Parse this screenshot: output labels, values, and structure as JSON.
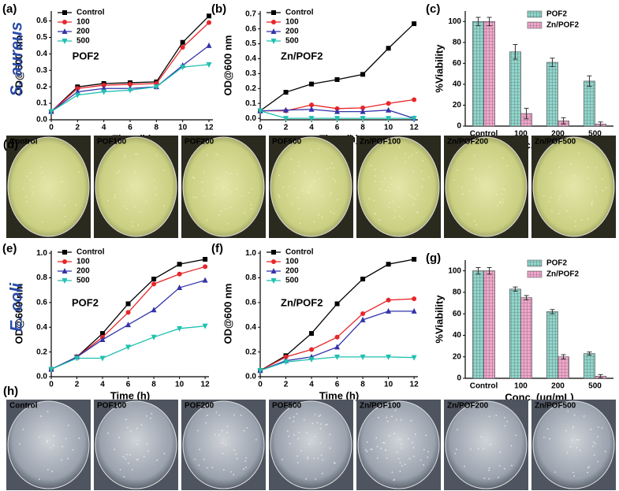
{
  "chart_data": [
    {
      "type": "line",
      "panel": "(a)",
      "row_label": "S. aureus",
      "annotation": "POF2",
      "x_label": "Time (h)",
      "y_label": "OD@600 nm",
      "x": [
        0,
        2,
        4,
        6,
        8,
        10,
        12
      ],
      "xlim": [
        0,
        12.3
      ],
      "xticks": [
        0,
        2,
        4,
        6,
        8,
        10,
        12
      ],
      "ylim": [
        0,
        0.66
      ],
      "yticks": [
        {
          "value": 0,
          "label": "0.0"
        },
        0.1,
        0.2,
        0.3,
        0.4,
        0.5,
        0.6
      ],
      "legend": "upper left",
      "series": [
        {
          "name": "Control",
          "color": "#000000",
          "marker": "square",
          "values": [
            0.05,
            0.2,
            0.22,
            0.225,
            0.23,
            0.47,
            0.63
          ]
        },
        {
          "name": "100",
          "color": "#e8262a",
          "marker": "circle",
          "values": [
            0.05,
            0.19,
            0.21,
            0.215,
            0.22,
            0.44,
            0.59
          ]
        },
        {
          "name": "200",
          "color": "#3333aa",
          "marker": "triangle-up",
          "values": [
            0.05,
            0.17,
            0.19,
            0.19,
            0.2,
            0.33,
            0.45
          ]
        },
        {
          "name": "500",
          "color": "#20c0b0",
          "marker": "triangle-down",
          "values": [
            0.05,
            0.15,
            0.17,
            0.18,
            0.2,
            0.32,
            0.335
          ]
        }
      ]
    },
    {
      "type": "line",
      "panel": "(b)",
      "annotation": "Zn/POF2",
      "x_label": "Time (h)",
      "y_label": "OD@600 nm",
      "x": [
        0,
        2,
        4,
        6,
        8,
        10,
        12
      ],
      "xlim": [
        0,
        12.3
      ],
      "xticks": [
        0,
        2,
        4,
        6,
        8,
        10,
        12
      ],
      "ylim": [
        -0.01,
        0.72
      ],
      "yticks": [
        {
          "value": 0,
          "label": "0.0"
        },
        0.1,
        0.2,
        0.3,
        0.4,
        0.5,
        0.6,
        0.7
      ],
      "legend": "upper left",
      "series": [
        {
          "name": "Control",
          "color": "#000000",
          "marker": "square",
          "values": [
            0.05,
            0.175,
            0.23,
            0.26,
            0.295,
            0.47,
            0.635
          ]
        },
        {
          "name": "100",
          "color": "#e8262a",
          "marker": "circle",
          "values": [
            0.05,
            0.05,
            0.09,
            0.065,
            0.07,
            0.1,
            0.125
          ]
        },
        {
          "name": "200",
          "color": "#3333aa",
          "marker": "triangle-up",
          "values": [
            0.05,
            0.055,
            0.06,
            0.045,
            0.045,
            0.055,
            0
          ]
        },
        {
          "name": "500",
          "color": "#20c0b0",
          "marker": "triangle-down",
          "values": [
            0.05,
            0,
            0,
            0,
            0,
            0,
            0
          ]
        }
      ]
    },
    {
      "type": "bar",
      "panel": "(c)",
      "x_label": "Conc. (μg/mL)",
      "y_label": "%Viability",
      "categories": [
        "Control",
        "100",
        "200",
        "500"
      ],
      "ylim": [
        0,
        110
      ],
      "yticks": [
        0,
        20,
        40,
        60,
        80,
        100
      ],
      "legend": "upper right",
      "series": [
        {
          "name": "POF2",
          "color": "#8fd6cc",
          "values": [
            100,
            71,
            61,
            43
          ],
          "errors": [
            4,
            7,
            4,
            5
          ]
        },
        {
          "name": "Zn/POF2",
          "color": "#f2a6cc",
          "values": [
            100,
            12,
            5,
            2
          ],
          "errors": [
            4,
            5,
            3,
            2
          ]
        }
      ]
    },
    {
      "type": "line",
      "panel": "(e)",
      "row_label": "E. coli",
      "annotation": "POF2",
      "x_label": "Time (h)",
      "y_label": "OD@600 nm",
      "x": [
        0,
        2,
        4,
        6,
        8,
        10,
        12
      ],
      "xlim": [
        0,
        12.3
      ],
      "xticks": [
        0,
        2,
        4,
        6,
        8,
        10,
        12
      ],
      "ylim": [
        0,
        1.02
      ],
      "yticks": [
        {
          "value": 0,
          "label": "0.0"
        },
        0.2,
        0.4,
        0.6,
        0.8,
        {
          "value": 1,
          "label": "1.0"
        }
      ],
      "legend": "upper left",
      "series": [
        {
          "name": "Control",
          "color": "#000000",
          "marker": "square",
          "values": [
            0.06,
            0.16,
            0.35,
            0.59,
            0.79,
            0.91,
            0.95
          ]
        },
        {
          "name": "100",
          "color": "#e8262a",
          "marker": "circle",
          "values": [
            0.06,
            0.16,
            0.32,
            0.52,
            0.75,
            0.83,
            0.89
          ]
        },
        {
          "name": "200",
          "color": "#3333aa",
          "marker": "triangle-up",
          "values": [
            0.06,
            0.16,
            0.3,
            0.42,
            0.54,
            0.72,
            0.78
          ]
        },
        {
          "name": "500",
          "color": "#20c0b0",
          "marker": "triangle-down",
          "values": [
            0.06,
            0.15,
            0.15,
            0.24,
            0.32,
            0.39,
            0.41
          ]
        }
      ]
    },
    {
      "type": "line",
      "panel": "(f)",
      "annotation": "Zn/POF2",
      "x_label": "Time (h)",
      "y_label": "OD@600 nm",
      "x": [
        0,
        2,
        4,
        6,
        8,
        10,
        12
      ],
      "xlim": [
        0,
        12.3
      ],
      "xticks": [
        0,
        2,
        4,
        6,
        8,
        10,
        12
      ],
      "ylim": [
        0,
        1.02
      ],
      "yticks": [
        {
          "value": 0,
          "label": "0.0"
        },
        0.2,
        0.4,
        0.6,
        0.8,
        {
          "value": 1,
          "label": "1.0"
        }
      ],
      "legend": "upper left",
      "series": [
        {
          "name": "Control",
          "color": "#000000",
          "marker": "square",
          "values": [
            0.05,
            0.17,
            0.35,
            0.59,
            0.79,
            0.91,
            0.95
          ]
        },
        {
          "name": "100",
          "color": "#e8262a",
          "marker": "circle",
          "values": [
            0.05,
            0.16,
            0.22,
            0.32,
            0.51,
            0.62,
            0.63
          ]
        },
        {
          "name": "200",
          "color": "#3333aa",
          "marker": "triangle-up",
          "values": [
            0.05,
            0.13,
            0.16,
            0.24,
            0.46,
            0.53,
            0.53
          ]
        },
        {
          "name": "500",
          "color": "#20c0b0",
          "marker": "triangle-down",
          "values": [
            0.05,
            0.12,
            0.14,
            0.16,
            0.16,
            0.16,
            0.155
          ]
        }
      ]
    },
    {
      "type": "bar",
      "panel": "(g)",
      "x_label": "Conc. (μg/mL)",
      "y_label": "%Viability",
      "categories": [
        "Control",
        "100",
        "200",
        "500"
      ],
      "ylim": [
        0,
        110
      ],
      "yticks": [
        0,
        20,
        40,
        60,
        80,
        100
      ],
      "legend": "upper right",
      "series": [
        {
          "name": "POF2",
          "color": "#8fd6cc",
          "values": [
            100,
            83,
            62,
            23
          ],
          "errors": [
            3,
            2,
            2,
            1.5
          ]
        },
        {
          "name": "Zn/POF2",
          "color": "#f2a6cc",
          "values": [
            100,
            75,
            20,
            2
          ],
          "errors": [
            3,
            2,
            2,
            1.5
          ]
        }
      ]
    }
  ],
  "photo_panels": [
    {
      "label": "(d)",
      "dishes": [
        "Control",
        "POF100",
        "POF200",
        "POF500",
        "Zn/POF100",
        "Zn/POF200",
        "Zn/POF500"
      ]
    },
    {
      "label": "(h)",
      "dishes": [
        "Control",
        "POF100",
        "POF200",
        "POF500",
        "Zn/POF100",
        "Zn/POF200",
        "Zn/POF500"
      ]
    }
  ]
}
